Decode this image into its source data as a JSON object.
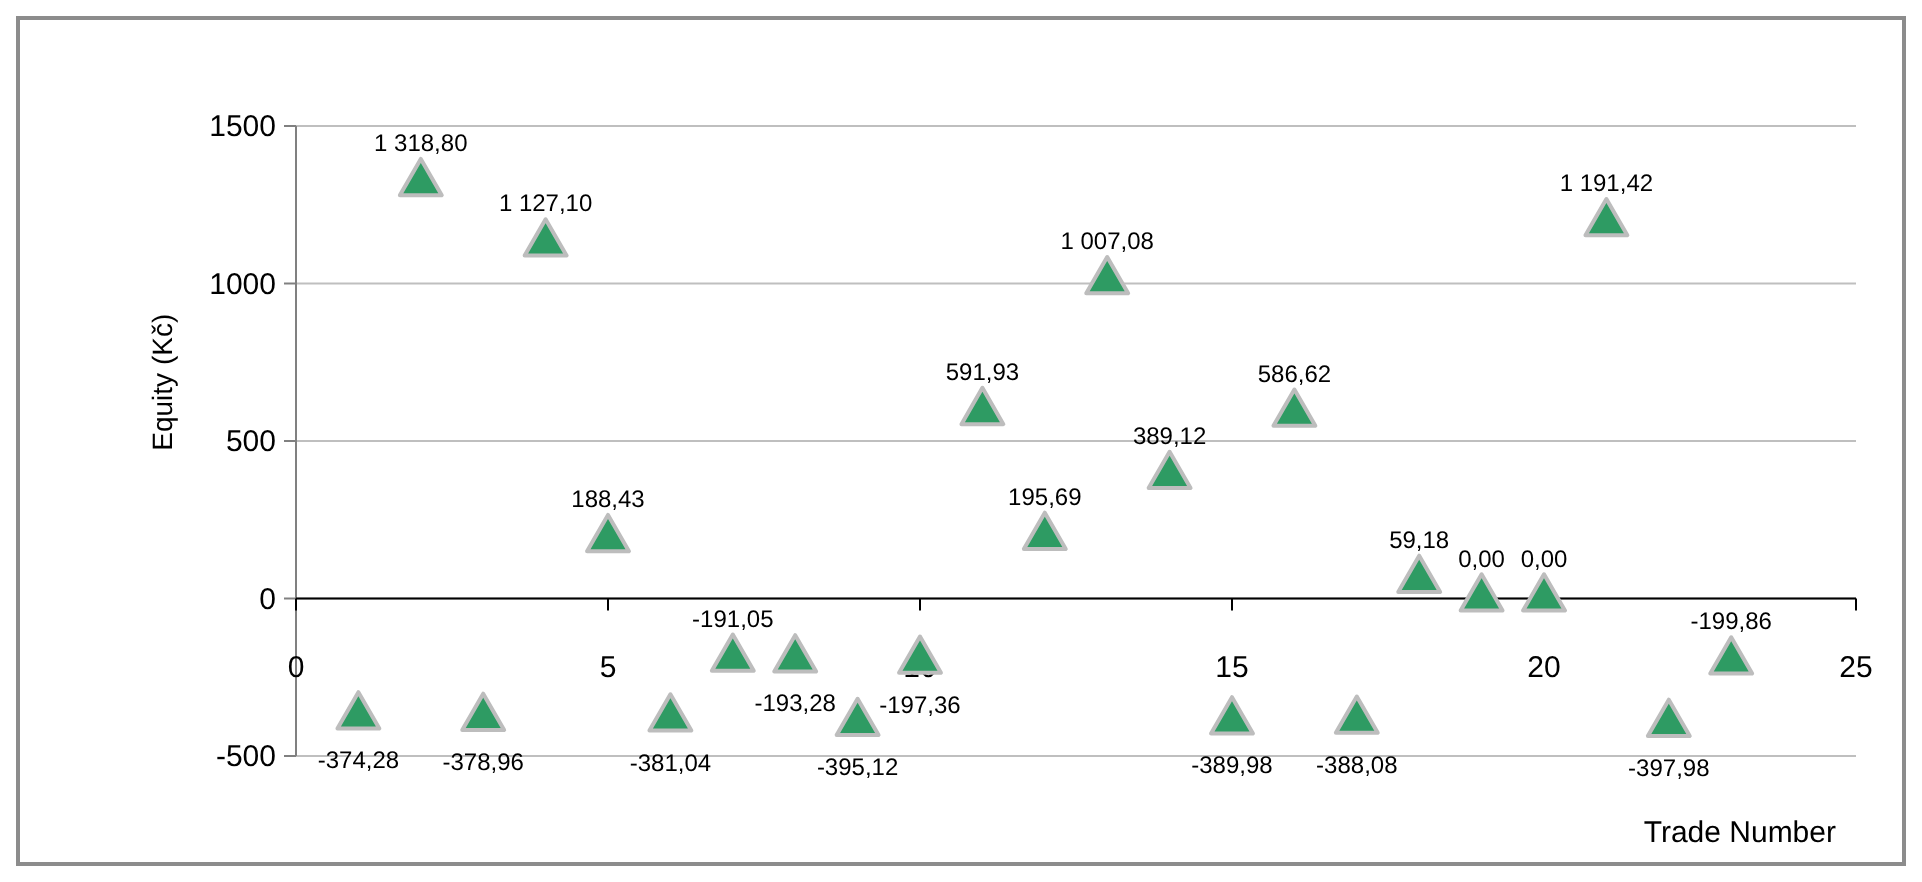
{
  "chart_data": {
    "type": "scatter",
    "xlabel": "Trade Number",
    "ylabel": "Equity (Kč)",
    "x": [
      1,
      2,
      3,
      4,
      5,
      6,
      7,
      8,
      9,
      10,
      11,
      12,
      13,
      14,
      15,
      16,
      17,
      18,
      19,
      20,
      21,
      22,
      23
    ],
    "series": [
      {
        "color": "#2e9b63",
        "values": [
          -374.28,
          1318.8,
          -378.96,
          1127.1,
          188.43,
          -381.04,
          -191.05,
          -193.28,
          -395.12,
          -197.36,
          591.93,
          195.69,
          1007.08,
          389.12,
          -389.98,
          586.62,
          -388.08,
          59.18,
          0,
          0,
          1191.42,
          -397.98,
          -199.86
        ],
        "value_labels": [
          "-374,28",
          "1 318,80",
          "-378,96",
          "1 127,10",
          "188,43",
          "-381,04",
          "-191,05",
          "-193,28",
          "-395,12",
          "-197,36",
          "591,93",
          "195,69",
          "1 007,08",
          "389,12",
          "-389,98",
          "586,62",
          "-388,08",
          "59,18",
          "0,00",
          "0,00",
          "1 191,42",
          "-397,98",
          "-199,86"
        ]
      }
    ],
    "xlim": [
      0,
      25
    ],
    "xticks": [
      0,
      5,
      10,
      15,
      20,
      25
    ],
    "ylim": [
      -500,
      1500
    ],
    "yticks": [
      -500,
      0,
      500,
      1000,
      1500
    ],
    "grid": "y",
    "marker": "triangle"
  }
}
